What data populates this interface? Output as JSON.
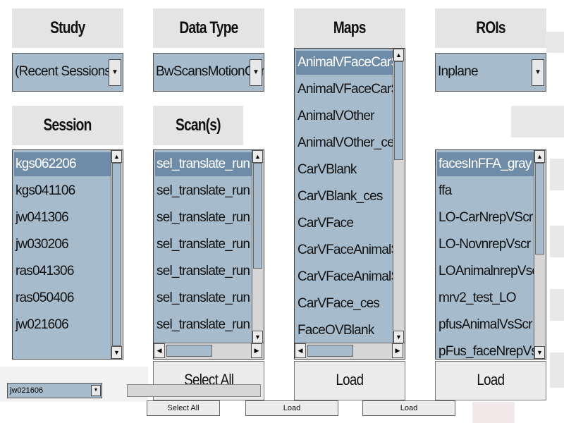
{
  "study": {
    "title": "Study",
    "selected": "(Recent Sessions)"
  },
  "data_type": {
    "title": "Data Type",
    "selected": "BwScansMotionComp"
  },
  "maps": {
    "title": "Maps",
    "items": [
      "AnimalVFaceCarSculpt",
      "AnimalVFaceCarSculpt",
      "AnimalVOther",
      "AnimalVOther_ces",
      "CarVBlank",
      "CarVBlank_ces",
      "CarVFace",
      "CarVFaceAnimalSculpt",
      "CarVFaceAnimalSculpt",
      "CarVFace_ces",
      "FaceOVBlank"
    ],
    "button": "Load"
  },
  "rois": {
    "title": "ROIs",
    "selected": "Inplane",
    "items": [
      "facesInFFA_gray",
      "ffa",
      "LO-CarNrepVScr",
      "LO-NovnrepVscr",
      "LOAnimalnrepVscr",
      "mrv2_test_LO",
      "pfusAnimalVsScr",
      "pFus_faceNrepVscr"
    ],
    "button": "Load"
  },
  "session": {
    "title": "Session",
    "items": [
      "kgs062206",
      "kgs041106",
      "jw041306",
      "jw030206",
      "ras041306",
      "ras050406",
      "jw021606"
    ]
  },
  "scans": {
    "title": "Scan(s)",
    "items": [
      "sel_translate_run scrip",
      "sel_translate_run scrip",
      "sel_translate_run scrip",
      "sel_translate_run scrip",
      "sel_translate_run scrip",
      "sel_translate_run scrip",
      "sel_translate_run scrip"
    ],
    "button": "Select All"
  },
  "footer": {
    "session": "jw021606",
    "select_all": "Select All",
    "load_maps": "Load",
    "load_rois": "Load"
  }
}
